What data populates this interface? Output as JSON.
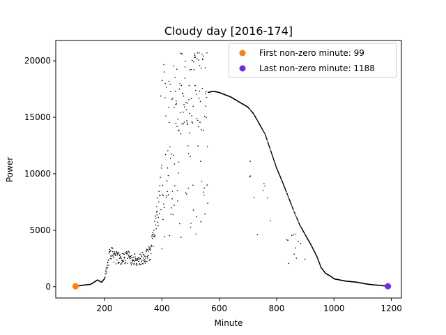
{
  "chart_data": {
    "type": "scatter",
    "title": "Cloudy day [2016-174]",
    "xlabel": "Minute",
    "ylabel": "Power",
    "xlim": [
      30,
      1235
    ],
    "ylim": [
      -1000,
      21800
    ],
    "x_ticks": [
      200,
      400,
      600,
      800,
      1000,
      1200
    ],
    "y_ticks": [
      0,
      5000,
      10000,
      15000,
      20000
    ],
    "legend_position": "top-right",
    "colors": {
      "points": "#000000",
      "first": "#ff7f0e",
      "last": "#6c2ee8"
    },
    "series": [
      {
        "name": "power",
        "x_range": [
          99,
          1188
        ],
        "profile": [
          [
            99,
            40
          ],
          [
            110,
            80
          ],
          [
            130,
            150
          ],
          [
            150,
            200
          ],
          [
            165,
            420
          ],
          [
            175,
            600
          ],
          [
            190,
            400
          ],
          [
            200,
            700
          ],
          [
            210,
            1800
          ],
          [
            220,
            2900
          ],
          [
            240,
            2500
          ],
          [
            260,
            2400
          ],
          [
            280,
            2600
          ],
          [
            300,
            2300
          ],
          [
            320,
            2400
          ],
          [
            340,
            2500
          ],
          [
            360,
            3000
          ],
          [
            380,
            5500
          ],
          [
            400,
            9000
          ],
          [
            420,
            14000
          ],
          [
            440,
            16500
          ],
          [
            460,
            16800
          ],
          [
            480,
            16600
          ],
          [
            500,
            17000
          ],
          [
            520,
            17500
          ],
          [
            540,
            17200
          ],
          [
            560,
            17200
          ],
          [
            580,
            17300
          ],
          [
            600,
            17200
          ],
          [
            620,
            17000
          ],
          [
            640,
            16800
          ],
          [
            660,
            16500
          ],
          [
            680,
            16200
          ],
          [
            700,
            15900
          ],
          [
            720,
            15300
          ],
          [
            740,
            14400
          ],
          [
            760,
            13500
          ],
          [
            780,
            12000
          ],
          [
            800,
            10500
          ],
          [
            820,
            9300
          ],
          [
            840,
            8000
          ],
          [
            860,
            6700
          ],
          [
            880,
            5500
          ],
          [
            900,
            4600
          ],
          [
            920,
            3700
          ],
          [
            940,
            2700
          ],
          [
            955,
            1700
          ],
          [
            970,
            1200
          ],
          [
            990,
            900
          ],
          [
            1000,
            700
          ],
          [
            1020,
            600
          ],
          [
            1040,
            500
          ],
          [
            1060,
            450
          ],
          [
            1080,
            400
          ],
          [
            1100,
            300
          ],
          [
            1120,
            220
          ],
          [
            1140,
            160
          ],
          [
            1160,
            120
          ],
          [
            1188,
            40
          ]
        ],
        "dips": [
          [
            400,
            450,
            0.55
          ],
          [
            450,
            500,
            0.2
          ],
          [
            500,
            560,
            0.3
          ],
          [
            700,
            780,
            0.15
          ],
          [
            830,
            900,
            0.1
          ]
        ]
      }
    ],
    "markers": [
      {
        "name": "First non-zero minute: 99",
        "x": 99,
        "y": 40,
        "color": "#ff7f0e"
      },
      {
        "name": "Last non-zero minute: 1188",
        "x": 1188,
        "y": 40,
        "color": "#6c2ee8"
      }
    ]
  }
}
